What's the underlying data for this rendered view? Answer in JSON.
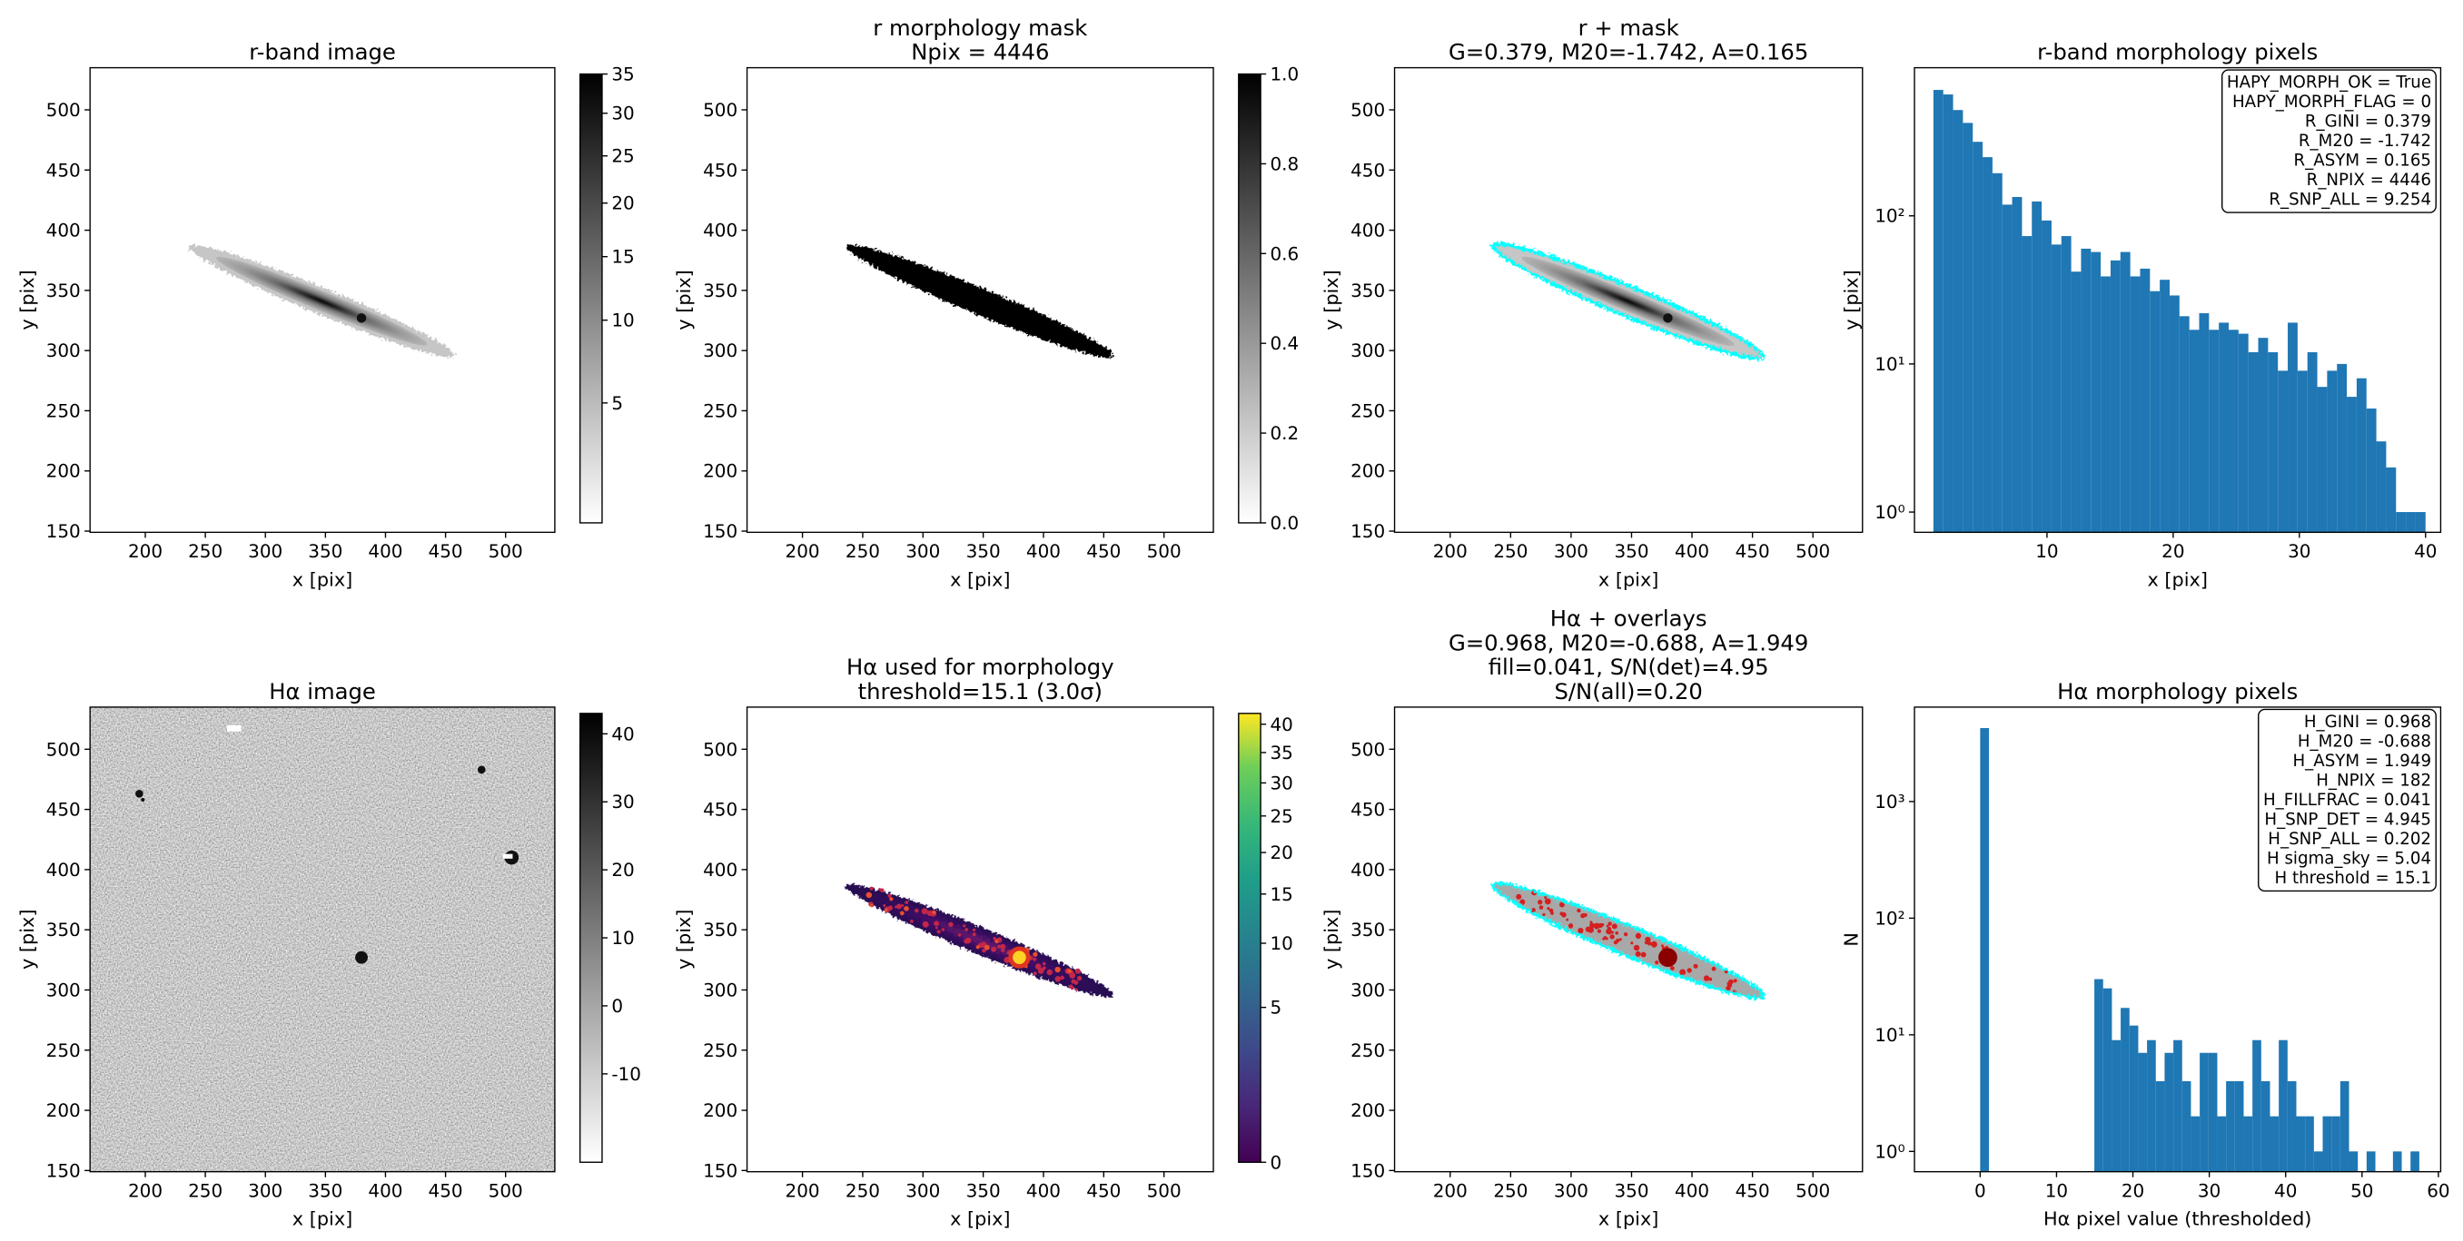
{
  "chart_data": [
    {
      "type": "image",
      "title": [
        "r-band image"
      ],
      "xlabel": "x [pix]",
      "ylabel": "y [pix]",
      "xlim": [
        154,
        541
      ],
      "ylim": [
        149,
        535
      ],
      "xticks": [
        200,
        250,
        300,
        350,
        400,
        450,
        500
      ],
      "yticks": [
        150,
        200,
        250,
        300,
        350,
        400,
        450,
        500
      ],
      "colorbar": {
        "cmap": "gray_r",
        "scale": "sqrt",
        "lim": [
          0.8,
          35
        ],
        "ticks": [
          5,
          10,
          15,
          20,
          25,
          30,
          35
        ]
      }
    },
    {
      "type": "image",
      "title": [
        "r morphology mask",
        "Npix = 4446"
      ],
      "xlabel": "x [pix]",
      "ylabel": "y [pix]",
      "xlim": [
        154,
        541
      ],
      "ylim": [
        149,
        535
      ],
      "xticks": [
        200,
        250,
        300,
        350,
        400,
        450,
        500
      ],
      "yticks": [
        150,
        200,
        250,
        300,
        350,
        400,
        450,
        500
      ],
      "colorbar": {
        "cmap": "gray_r",
        "scale": "linear",
        "lim": [
          0,
          1
        ],
        "ticks": [
          {
            "value": 0,
            "label": "0.0"
          },
          0.2,
          0.4,
          0.6,
          0.8,
          {
            "value": 1,
            "label": "1.0"
          }
        ]
      }
    },
    {
      "type": "image",
      "title": [
        "r + mask",
        "G=0.379, M20=-1.742, A=0.165"
      ],
      "xlabel": "x [pix]",
      "ylabel": "y [pix]",
      "xlim": [
        154,
        541
      ],
      "ylim": [
        149,
        535
      ],
      "xticks": [
        200,
        250,
        300,
        350,
        400,
        450,
        500
      ],
      "yticks": [
        150,
        200,
        250,
        300,
        350,
        400,
        450,
        500
      ],
      "contour_color": "cyan"
    },
    {
      "type": "histogram",
      "title": [
        "r-band morphology pixels"
      ],
      "xlabel": "x [pix]",
      "ylabel": "y [pix]",
      "color": "#1f77b4",
      "log_y": true,
      "xlim": [
        -0.5,
        41.2
      ],
      "ylim": [
        0.73,
        1000
      ],
      "xticks": [
        10,
        20,
        30,
        40
      ],
      "yticks": [
        {
          "value": 1,
          "label": "10⁰"
        },
        {
          "value": 10,
          "label": "10¹"
        },
        {
          "value": 100,
          "label": "10²"
        }
      ],
      "bins": [
        1,
        1.78,
        2.56,
        3.34,
        4.12,
        4.9,
        5.68,
        6.46,
        7.24,
        8.02,
        8.8,
        9.58,
        10.36,
        11.14,
        11.92,
        12.7,
        13.48,
        14.26,
        15.04,
        15.82,
        16.6,
        17.38,
        18.16,
        18.94,
        19.72,
        20.5,
        21.28,
        22.06,
        22.84,
        23.62,
        24.4,
        25.18,
        25.96,
        26.74,
        27.52,
        28.3,
        29.08,
        29.86,
        30.64,
        31.42,
        32.2,
        32.98,
        33.76,
        34.54,
        35.32,
        36.1,
        36.88,
        37.66,
        38.44,
        39.22,
        40
      ],
      "values": [
        708,
        660,
        518,
        424,
        316,
        249,
        194,
        119,
        134,
        73,
        125,
        93,
        64,
        73,
        42,
        60,
        57,
        39,
        50,
        57,
        39,
        44,
        31,
        37,
        29,
        21,
        17,
        22,
        17,
        19,
        17,
        16,
        12,
        15,
        12,
        9,
        19,
        9,
        12,
        7,
        9,
        10,
        6,
        8,
        5,
        3,
        2,
        1,
        1,
        1
      ],
      "annotation": [
        "HAPY_MORPH_OK = True",
        "HAPY_MORPH_FLAG = 0",
        "R_GINI = 0.379",
        "R_M20 = -1.742",
        "R_ASYM = 0.165",
        "R_NPIX = 4446",
        "R_SNP_ALL = 9.254"
      ]
    },
    {
      "type": "image",
      "title": [
        "Hα image"
      ],
      "xlabel": "x [pix]",
      "ylabel": "y [pix]",
      "xlim": [
        154,
        541
      ],
      "ylim": [
        149,
        535
      ],
      "xticks": [
        200,
        250,
        300,
        350,
        400,
        450,
        500
      ],
      "yticks": [
        150,
        200,
        250,
        300,
        350,
        400,
        450,
        500
      ],
      "colorbar": {
        "cmap": "gray_r",
        "scale": "linear",
        "lim": [
          -23,
          43
        ],
        "ticks": [
          -10,
          0,
          10,
          20,
          30,
          40
        ]
      }
    },
    {
      "type": "image",
      "title": [
        "Hα used for morphology",
        "threshold=15.1 (3.0σ)"
      ],
      "xlabel": "x [pix]",
      "ylabel": "y [pix]",
      "xlim": [
        154,
        541
      ],
      "ylim": [
        149,
        535
      ],
      "xticks": [
        200,
        250,
        300,
        350,
        400,
        450,
        500
      ],
      "yticks": [
        150,
        200,
        250,
        300,
        350,
        400,
        450,
        500
      ],
      "colorbar": {
        "cmap": "viridis",
        "scale": "sqrt",
        "lim": [
          0,
          42
        ],
        "ticks": [
          0,
          5,
          10,
          15,
          20,
          25,
          30,
          35,
          40
        ]
      }
    },
    {
      "type": "image",
      "title": [
        "Hα + overlays",
        "G=0.968, M20=-0.688, A=1.949",
        "fill=0.041, S/N(det)=4.95",
        "S/N(all)=0.20"
      ],
      "xlabel": "x [pix]",
      "ylabel": "y [pix]",
      "xlim": [
        154,
        541
      ],
      "ylim": [
        149,
        535
      ],
      "xticks": [
        200,
        250,
        300,
        350,
        400,
        450,
        500
      ],
      "yticks": [
        150,
        200,
        250,
        300,
        350,
        400,
        450,
        500
      ],
      "contour_color": "cyan"
    },
    {
      "type": "histogram",
      "title": [
        "Hα morphology pixels"
      ],
      "xlabel": "Hα pixel value (thresholded)",
      "ylabel": "N",
      "color": "#1f77b4",
      "log_y": true,
      "xlim": [
        -8.6,
        60.3
      ],
      "ylim": [
        0.67,
        6450
      ],
      "xticks": [
        0,
        10,
        20,
        30,
        40,
        50,
        60
      ],
      "yticks": [
        {
          "value": 1,
          "label": "10⁰"
        },
        {
          "value": 10,
          "label": "10¹"
        },
        {
          "value": 100,
          "label": "10²"
        },
        {
          "value": 1000,
          "label": "10³"
        }
      ],
      "bins": [
        0,
        1.15,
        2.3,
        3.45,
        4.6,
        5.75,
        6.9,
        8.05,
        9.2,
        10.35,
        11.5,
        12.65,
        13.8,
        14.95,
        16.1,
        17.25,
        18.4,
        19.55,
        20.7,
        21.85,
        23,
        24.15,
        25.3,
        26.45,
        27.6,
        28.75,
        29.9,
        31.05,
        32.2,
        33.35,
        34.5,
        35.65,
        36.8,
        37.95,
        39.1,
        40.25,
        41.4,
        42.55,
        43.7,
        44.85,
        46,
        47.15,
        48.3,
        49.45,
        50.6,
        51.75,
        52.9,
        54.05,
        55.2,
        56.35,
        57.5
      ],
      "values": [
        4264,
        0,
        0,
        0,
        0,
        0,
        0,
        0,
        0,
        0,
        0,
        0,
        0,
        30,
        25,
        9,
        17,
        12,
        7,
        9,
        4,
        7,
        9,
        4,
        2,
        7,
        7,
        2,
        4,
        4,
        2,
        9,
        4,
        2,
        9,
        4,
        2,
        2,
        1,
        2,
        2,
        4,
        1,
        0,
        1,
        0,
        0,
        1,
        0,
        1
      ],
      "annotation": [
        "H_GINI = 0.968",
        "H_M20 = -0.688",
        "H_ASYM = 1.949",
        "H_NPIX = 182",
        "H_FILLFRAC = 0.041",
        "H_SNP_DET = 4.945",
        "H_SNP_ALL = 0.202",
        "H sigma_sky = 5.04",
        "H threshold = 15.1"
      ]
    }
  ]
}
